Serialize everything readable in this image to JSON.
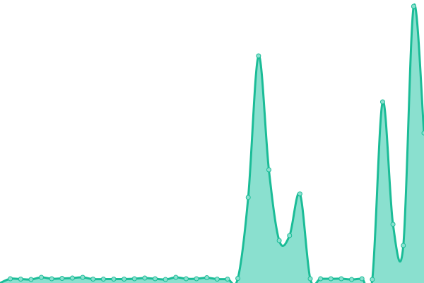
{
  "chart_data": {
    "type": "area",
    "title": "",
    "xlabel": "",
    "ylabel": "",
    "grid": false,
    "legend": "none",
    "ylim": [
      0,
      400
    ],
    "x": [
      0,
      1,
      2,
      3,
      4,
      5,
      6,
      7,
      8,
      9,
      10,
      11,
      12,
      13,
      14,
      15,
      16,
      17,
      18,
      19,
      20,
      21,
      22,
      23,
      24,
      25,
      26,
      27,
      28,
      29,
      30,
      31,
      32,
      33,
      34,
      35,
      36,
      37,
      38,
      39,
      40,
      41
    ],
    "values": [
      0,
      6,
      5.5,
      5,
      8,
      6,
      6.5,
      7,
      8,
      5.5,
      5.5,
      5.5,
      5.5,
      6,
      7,
      6,
      5,
      8,
      6,
      6,
      7.5,
      5.5,
      5.5,
      6.5,
      121,
      321,
      160,
      60,
      67,
      126,
      6,
      6,
      6,
      6,
      5,
      6,
      5,
      256,
      83,
      53,
      391,
      212
    ],
    "colors": {
      "line": "#1bbc97",
      "fill": "#8ae0cf",
      "point_fill": "#8ae0cf"
    }
  }
}
